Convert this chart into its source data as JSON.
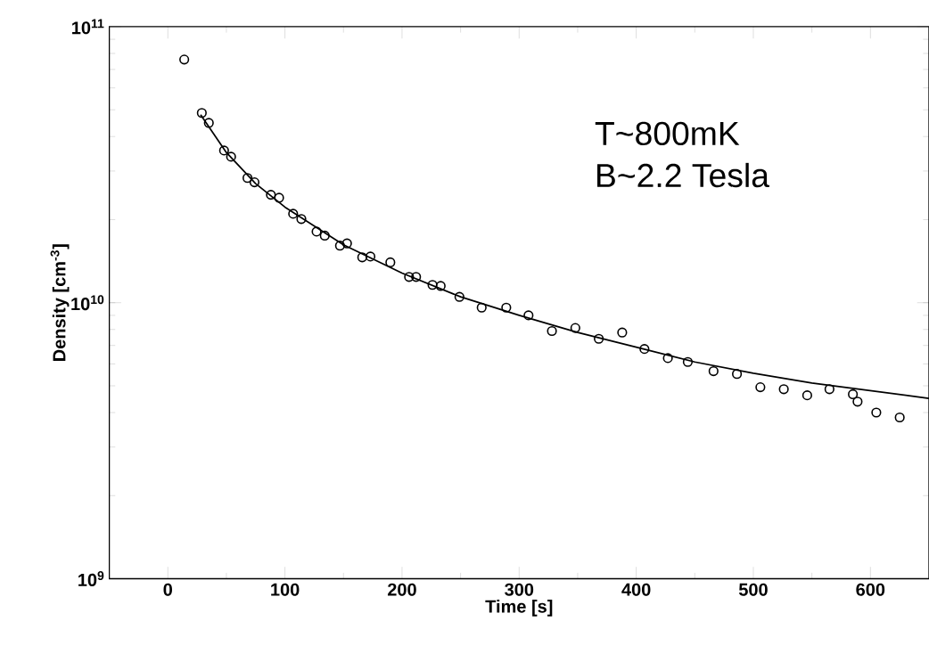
{
  "chart_data": {
    "type": "scatter",
    "xlabel": "Time [s]",
    "ylabel": "Density [cm$^{-3}$]",
    "xlim": [
      -50,
      650
    ],
    "xticks": [
      0,
      100,
      200,
      300,
      400,
      500,
      600
    ],
    "ylim": [
      1000000000.0,
      100000000000.0
    ],
    "log": "y",
    "yticks": [
      {
        "value": 1000000000.0,
        "label": "10$^{9}$"
      },
      {
        "value": 10000000000.0,
        "label": "10$^{10}$"
      },
      {
        "value": 100000000000.0,
        "label": "10$^{11}$"
      }
    ],
    "grid": false,
    "annotations": [
      "T~800mK",
      "B~2.2 Tesla"
    ],
    "series": [
      {
        "marker": "circle",
        "color": "#000000",
        "x": [
          14,
          29,
          35,
          48,
          54,
          68,
          74,
          88,
          95,
          107,
          114,
          127,
          134,
          147,
          153,
          166,
          173,
          190,
          206,
          212,
          226,
          233,
          249,
          268,
          289,
          308,
          328,
          348,
          368,
          388,
          407,
          427,
          444,
          466,
          486,
          506,
          526,
          546,
          565,
          585,
          589,
          605,
          625
        ],
        "values": [
          76000000000.0,
          48700000000.0,
          44800000000.0,
          35600000000.0,
          33800000000.0,
          28300000000.0,
          27300000000.0,
          24600000000.0,
          24000000000.0,
          21000000000.0,
          20100000000.0,
          18100000000.0,
          17500000000.0,
          16100000000.0,
          16400000000.0,
          14600000000.0,
          14700000000.0,
          14000000000.0,
          12400000000.0,
          12400000000.0,
          11600000000.0,
          11500000000.0,
          10500000000.0,
          9600000000.0,
          9600000000.0,
          9000000000.0,
          7900000000.0,
          8100000000.0,
          7400000000.0,
          7800000000.0,
          6800000000.0,
          6300000000.0,
          6100000000.0,
          5650000000.0,
          5520000000.0,
          4940000000.0,
          4860000000.0,
          4620000000.0,
          4860000000.0,
          4660000000.0,
          4380000000.0,
          4000000000.0,
          3840000000.0
        ]
      },
      {
        "type": "line",
        "marker": "none",
        "color": "#000000",
        "x": [
          28,
          50,
          75,
          100,
          150,
          200,
          250,
          300,
          350,
          400,
          450,
          500,
          550,
          600,
          650
        ],
        "values": [
          48000000000.0,
          35000000000.0,
          27000000000.0,
          22200000000.0,
          16200000000.0,
          12800000000.0,
          10500000000.0,
          9000000000.0,
          7800000000.0,
          6900000000.0,
          6100000000.0,
          5550000000.0,
          5120000000.0,
          4800000000.0,
          4500000000.0
        ]
      }
    ]
  }
}
